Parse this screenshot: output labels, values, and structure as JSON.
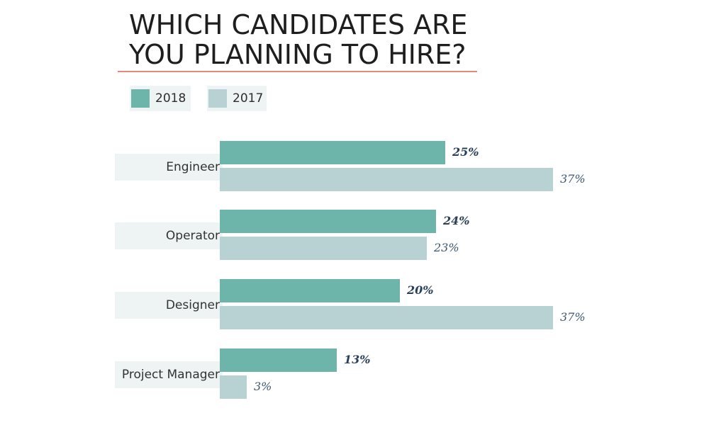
{
  "chart_data": {
    "type": "bar",
    "orientation": "horizontal",
    "title_lines": [
      "WHICH CANDIDATES ARE",
      "YOU PLANNING TO HIRE?"
    ],
    "categories": [
      "Engineer",
      "Operator",
      "Designer",
      "Project Manager"
    ],
    "series": [
      {
        "name": "2018",
        "values": [
          25,
          24,
          20,
          13
        ],
        "labels": [
          "25%",
          "24%",
          "20%",
          "13%"
        ],
        "color": "#6db5aa"
      },
      {
        "name": "2017",
        "values": [
          37,
          23,
          37,
          3
        ],
        "labels": [
          "37%",
          "23%",
          "37%",
          "3%"
        ],
        "color": "#b8d1d2"
      }
    ],
    "value_unit": "%",
    "xlim": [
      0,
      37
    ],
    "legend_position": "top-left",
    "grid": false,
    "title_rule_color": "#e8877f"
  }
}
